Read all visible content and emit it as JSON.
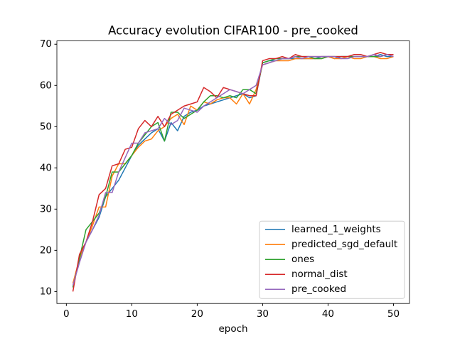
{
  "chart_data": {
    "type": "line",
    "title": "Accuracy evolution CIFAR100 - pre_cooked",
    "xlabel": "epoch",
    "x": [
      1,
      2,
      3,
      4,
      5,
      6,
      7,
      8,
      9,
      10,
      11,
      12,
      13,
      14,
      15,
      16,
      17,
      18,
      19,
      20,
      21,
      22,
      23,
      24,
      25,
      26,
      27,
      28,
      29,
      30,
      31,
      32,
      33,
      34,
      35,
      36,
      37,
      38,
      39,
      40,
      41,
      42,
      43,
      44,
      45,
      46,
      47,
      48,
      49,
      50
    ],
    "series": [
      {
        "name": "learned_1_weights",
        "color": "#1f77b4",
        "values": [
          11,
          18,
          22,
          25,
          28,
          33,
          35,
          37,
          40,
          43,
          45.5,
          47,
          48.5,
          49.5,
          46.5,
          51,
          49,
          52.5,
          53.5,
          54,
          55,
          55.5,
          56,
          56.5,
          57,
          57.5,
          58,
          57,
          57.5,
          65.5,
          66,
          66,
          66.5,
          66.5,
          66.5,
          66.5,
          66.5,
          66.5,
          67,
          67,
          66.5,
          67,
          67,
          67,
          67,
          67,
          67,
          67.5,
          67,
          67
        ]
      },
      {
        "name": "predicted_sgd_default",
        "color": "#ff7f0e",
        "values": [
          12,
          18,
          22,
          26,
          30.5,
          30.5,
          38,
          41,
          41,
          43,
          45,
          46.5,
          47,
          49,
          50,
          52,
          53,
          50.5,
          55,
          54,
          56,
          55.5,
          56.5,
          57,
          57,
          55.5,
          58,
          55.5,
          59,
          65,
          65.5,
          66,
          66,
          66,
          66.5,
          66.5,
          66.5,
          66.5,
          66.5,
          67,
          66.5,
          66.5,
          67,
          66.5,
          66.5,
          67,
          67,
          66.5,
          66.5,
          67
        ]
      },
      {
        "name": "ones",
        "color": "#2ca02c",
        "values": [
          11,
          18,
          25,
          27,
          29,
          33,
          39,
          39,
          41,
          43,
          46,
          48,
          50,
          51,
          46.5,
          53.5,
          53.5,
          52,
          53,
          54,
          56,
          57.5,
          57.5,
          57,
          57.5,
          57,
          59,
          59,
          58,
          65.5,
          66,
          66.5,
          66.5,
          66.5,
          67,
          67,
          67,
          66.5,
          66.5,
          67,
          67,
          67,
          67,
          67,
          67,
          67,
          67,
          67,
          67.5,
          67.5
        ]
      },
      {
        "name": "normal_dist",
        "color": "#d62728",
        "values": [
          10,
          19,
          22,
          27,
          33.5,
          35,
          40.5,
          41,
          44.5,
          45,
          49.5,
          51.5,
          50,
          52.5,
          50,
          53,
          54,
          55,
          55.5,
          56,
          59.5,
          58.5,
          57,
          59.5,
          59,
          58.5,
          58,
          57.5,
          57.5,
          66,
          66.5,
          66.5,
          67,
          66.5,
          67.5,
          67,
          67,
          67,
          67,
          67,
          67,
          67,
          67,
          67.5,
          67.5,
          67,
          67.5,
          68,
          67.5,
          67.5
        ]
      },
      {
        "name": "pre_cooked",
        "color": "#9467bd",
        "values": [
          11.5,
          17,
          22,
          25,
          28.5,
          34,
          34,
          39,
          42.5,
          46,
          46,
          48.5,
          49,
          49.5,
          52,
          50.5,
          51.5,
          54.5,
          54,
          53.5,
          55,
          56,
          57,
          58,
          59,
          58.5,
          58,
          59,
          60,
          65,
          65.5,
          66,
          66.5,
          66.5,
          67,
          66.5,
          67,
          67,
          67,
          67,
          67,
          66.5,
          66.5,
          67,
          67,
          67,
          67.5,
          67,
          67.5,
          67
        ]
      }
    ],
    "xlim": [
      -1.45,
      52.45
    ],
    "ylim": [
      7.1,
      70.8
    ],
    "xticks": [
      0,
      10,
      20,
      30,
      40,
      50
    ],
    "yticks": [
      10,
      20,
      30,
      40,
      50,
      60,
      70
    ],
    "legend": "lower right"
  }
}
